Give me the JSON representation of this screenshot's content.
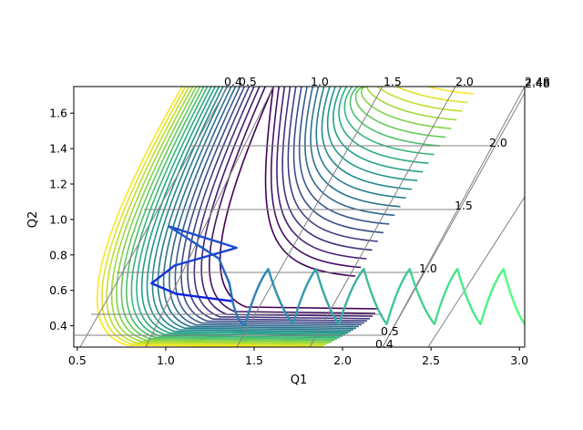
{
  "chart_data": {
    "type": "line",
    "title": "",
    "xlabel": "Q1",
    "ylabel": "Q2",
    "xlim": [
      0.48,
      3.03
    ],
    "ylim": [
      0.28,
      1.75
    ],
    "xticks": [
      "0.5",
      "1.0",
      "1.5",
      "2.0",
      "2.5",
      "3.0"
    ],
    "yticks": [
      "0.4",
      "0.6",
      "0.8",
      "1.0",
      "1.2",
      "1.4",
      "1.6"
    ],
    "contour_colormap": "viridis",
    "contour_levels": 22,
    "skewed_grid": {
      "color": "#808080",
      "top_labels": [
        "0.4",
        "0.5",
        "1.0",
        "1.5",
        "2.0",
        "2.48"
      ],
      "right_labels": [
        "0.4",
        "0.5",
        "1.0",
        "1.5",
        "2.0",
        "2.48"
      ]
    },
    "series": [
      {
        "type": "trajectory",
        "color_start": "#1020e0",
        "color_end": "#50ff80",
        "description_points": [
          [
            1.37,
            0.54
          ],
          [
            1.06,
            0.58
          ],
          [
            0.92,
            0.64
          ],
          [
            1.05,
            0.74
          ],
          [
            1.4,
            0.84
          ],
          [
            1.02,
            0.96
          ],
          [
            1.3,
            0.78
          ],
          [
            1.36,
            0.64
          ],
          [
            1.38,
            0.53
          ],
          [
            1.45,
            0.41
          ],
          [
            1.58,
            0.72
          ],
          [
            1.72,
            0.41
          ],
          [
            1.85,
            0.72
          ],
          [
            1.98,
            0.41
          ],
          [
            2.12,
            0.72
          ],
          [
            2.25,
            0.41
          ],
          [
            2.38,
            0.72
          ],
          [
            2.52,
            0.41
          ],
          [
            2.65,
            0.72
          ],
          [
            2.78,
            0.41
          ],
          [
            2.91,
            0.72
          ],
          [
            3.03,
            0.41
          ]
        ]
      }
    ]
  }
}
